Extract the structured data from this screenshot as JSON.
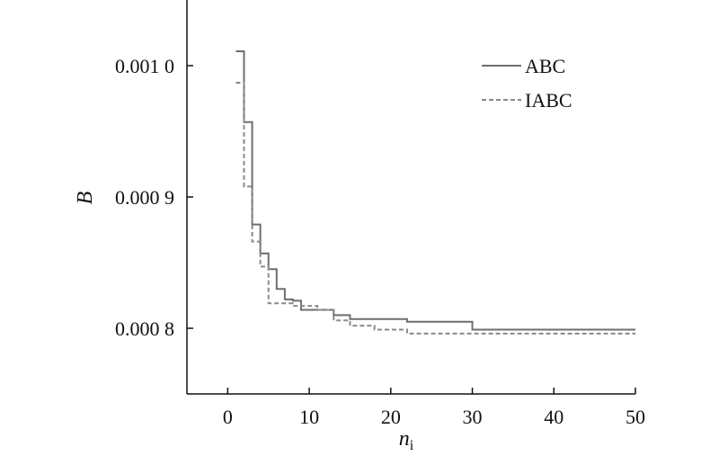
{
  "chart_data": {
    "type": "line",
    "title": "",
    "xlabel": "n",
    "xlabel_subscript": "i",
    "ylabel": "B",
    "xlim": [
      -5,
      50
    ],
    "ylim": [
      0.00075,
      0.00105
    ],
    "x_ticks": [
      {
        "value": 0,
        "label": "0"
      },
      {
        "value": 10,
        "label": "10"
      },
      {
        "value": 20,
        "label": "20"
      },
      {
        "value": 30,
        "label": "30"
      },
      {
        "value": 40,
        "label": "40"
      },
      {
        "value": 50,
        "label": "50"
      }
    ],
    "y_ticks": [
      {
        "value": 0.0008,
        "label": "0.000 8"
      },
      {
        "value": 0.0009,
        "label": "0.000 9"
      },
      {
        "value": 0.001,
        "label": "0.001 0"
      }
    ],
    "grid": false,
    "legend_position": "top-right",
    "series": [
      {
        "name": "ABC",
        "style": "solid",
        "color": "#6e6e6e",
        "points": [
          [
            1,
            0.001011
          ],
          [
            2,
            0.000957
          ],
          [
            3,
            0.000879
          ],
          [
            4,
            0.000857
          ],
          [
            5,
            0.000845
          ],
          [
            6,
            0.00083
          ],
          [
            7,
            0.000822
          ],
          [
            8,
            0.000821
          ],
          [
            9,
            0.000814
          ],
          [
            13,
            0.00081
          ],
          [
            15,
            0.000807
          ],
          [
            22,
            0.000805
          ],
          [
            30,
            0.000799
          ],
          [
            50,
            0.000799
          ]
        ]
      },
      {
        "name": "IABC",
        "style": "dashed",
        "color": "#8a8a8a",
        "points": [
          [
            1,
            0.000987
          ],
          [
            2,
            0.000908
          ],
          [
            3,
            0.000866
          ],
          [
            4,
            0.000847
          ],
          [
            5,
            0.000819
          ],
          [
            8,
            0.000817
          ],
          [
            11,
            0.000814
          ],
          [
            13,
            0.000806
          ],
          [
            15,
            0.000802
          ],
          [
            18,
            0.000799
          ],
          [
            22,
            0.000796
          ],
          [
            50,
            0.000796
          ]
        ]
      }
    ]
  }
}
